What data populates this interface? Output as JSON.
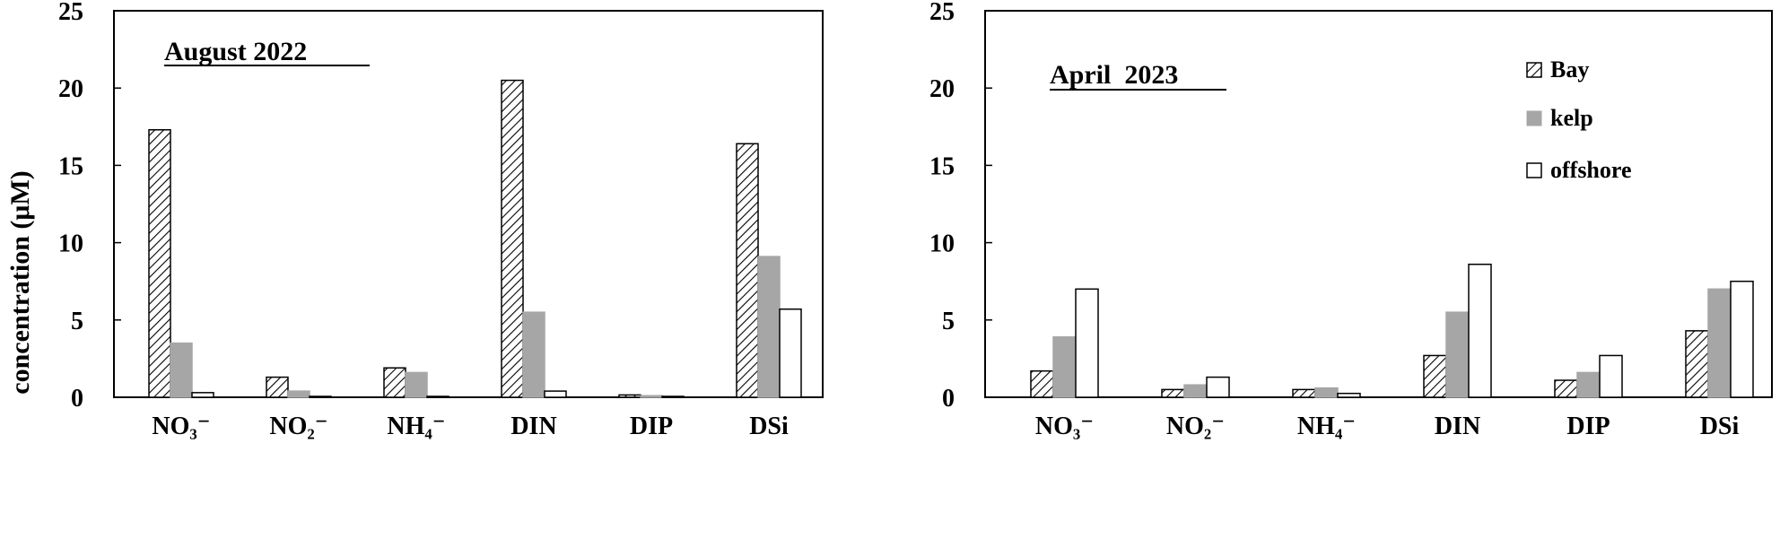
{
  "chart_data": {
    "type": "bar",
    "ylabel": "concentration (μM)",
    "ylim": [
      0,
      25
    ],
    "yticks": [
      "0",
      "5",
      "10",
      "15",
      "20",
      "25"
    ],
    "categories": [
      "NO₃⁻",
      "NO₂⁻",
      "NH₄⁻",
      "DIN",
      "DIP",
      "DSi"
    ],
    "series_names": [
      "Bay",
      "kelp",
      "offshore"
    ],
    "legend_position": "top-right of right panel",
    "colors": {
      "Bay": "#ffffff",
      "kelp": "#a6a6a6",
      "offshore": "#ffffff",
      "stroke": "#000000"
    },
    "panels": [
      {
        "title": "August 2022",
        "series": [
          {
            "name": "Bay",
            "values": [
              17.3,
              1.3,
              1.9,
              20.5,
              0.15,
              16.4
            ]
          },
          {
            "name": "kelp",
            "values": [
              3.5,
              0.4,
              1.6,
              5.5,
              0.1,
              9.1
            ]
          },
          {
            "name": "offshore",
            "values": [
              0.3,
              0.05,
              0.05,
              0.4,
              0.05,
              5.7
            ]
          }
        ]
      },
      {
        "title": "April  2023",
        "series": [
          {
            "name": "Bay",
            "values": [
              1.7,
              0.5,
              0.5,
              2.7,
              1.1,
              4.3
            ]
          },
          {
            "name": "kelp",
            "values": [
              3.9,
              0.8,
              0.6,
              5.5,
              1.6,
              7.0
            ]
          },
          {
            "name": "offshore",
            "values": [
              7.0,
              1.3,
              0.25,
              8.6,
              2.7,
              7.5
            ]
          }
        ]
      }
    ]
  }
}
